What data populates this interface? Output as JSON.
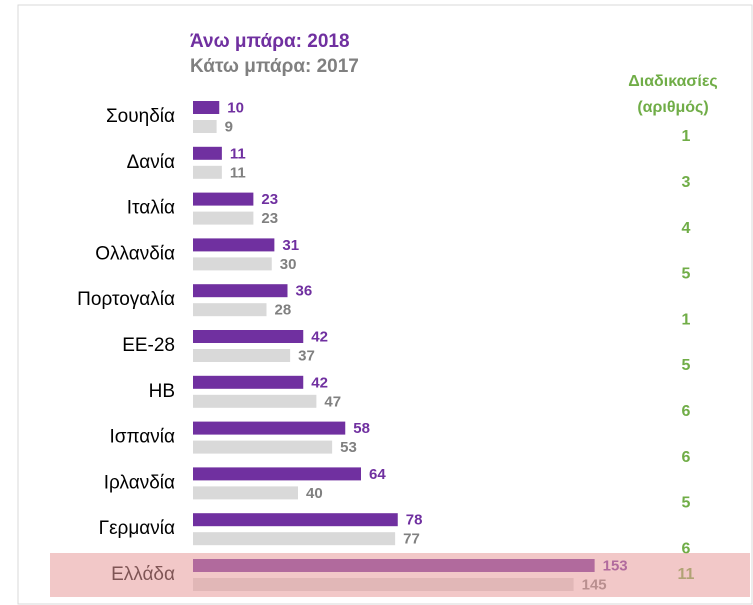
{
  "chart_data": {
    "type": "bar",
    "orientation": "horizontal",
    "categories": [
      "Σουηδία",
      "Δανία",
      "Ιταλία",
      "Ολλανδία",
      "Πορτογαλία",
      "ΕΕ-28",
      "ΗΒ",
      "Ισπανία",
      "Ιρλανδία",
      "Γερμανία",
      "Ελλάδα"
    ],
    "series": [
      {
        "name": "Άνω μπάρα: 2018",
        "color": "#7030a0",
        "label_color": "#7030a0",
        "values": [
          10,
          11,
          23,
          31,
          36,
          42,
          42,
          58,
          64,
          78,
          153
        ]
      },
      {
        "name": "Κάτω μπάρα: 2017",
        "color": "#d9d9d9",
        "label_color": "#808080",
        "values": [
          9,
          11,
          23,
          30,
          28,
          37,
          47,
          53,
          40,
          77,
          145
        ]
      }
    ],
    "xlim": [
      0,
      160
    ],
    "highlight_index": 10,
    "highlight_color": "#e89a9a",
    "side_column": {
      "title": [
        "Διαδικασίες",
        "(αριθμός)"
      ],
      "color": "#70ad47",
      "values": [
        1,
        3,
        4,
        5,
        1,
        5,
        6,
        6,
        5,
        6,
        11
      ]
    }
  }
}
